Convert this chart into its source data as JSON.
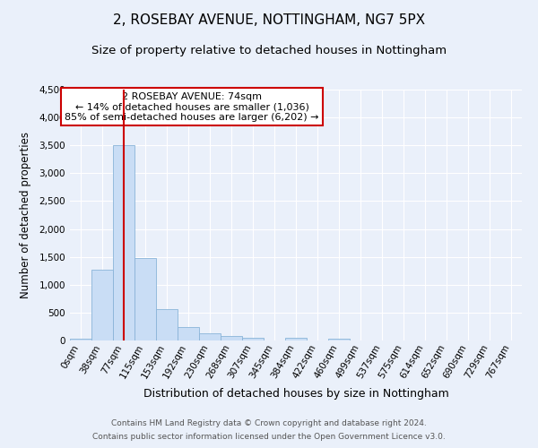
{
  "title": "2, ROSEBAY AVENUE, NOTTINGHAM, NG7 5PX",
  "subtitle": "Size of property relative to detached houses in Nottingham",
  "xlabel": "Distribution of detached houses by size in Nottingham",
  "ylabel": "Number of detached properties",
  "bar_labels": [
    "0sqm",
    "38sqm",
    "77sqm",
    "115sqm",
    "153sqm",
    "192sqm",
    "230sqm",
    "268sqm",
    "307sqm",
    "345sqm",
    "384sqm",
    "422sqm",
    "460sqm",
    "499sqm",
    "537sqm",
    "575sqm",
    "614sqm",
    "652sqm",
    "690sqm",
    "729sqm",
    "767sqm"
  ],
  "bar_values": [
    30,
    1270,
    3500,
    1480,
    570,
    240,
    130,
    75,
    50,
    0,
    45,
    0,
    35,
    0,
    0,
    0,
    0,
    0,
    0,
    0,
    0
  ],
  "bar_color": "#c9ddf5",
  "bar_edgecolor": "#8ab4d8",
  "red_line_x": 2.0,
  "ylim": [
    0,
    4500
  ],
  "yticks": [
    0,
    500,
    1000,
    1500,
    2000,
    2500,
    3000,
    3500,
    4000,
    4500
  ],
  "annotation_title": "2 ROSEBAY AVENUE: 74sqm",
  "annotation_line1": "← 14% of detached houses are smaller (1,036)",
  "annotation_line2": "85% of semi-detached houses are larger (6,202) →",
  "annotation_box_facecolor": "#ffffff",
  "annotation_box_edgecolor": "#cc0000",
  "red_line_color": "#cc0000",
  "footer_line1": "Contains HM Land Registry data © Crown copyright and database right 2024.",
  "footer_line2": "Contains public sector information licensed under the Open Government Licence v3.0.",
  "bg_color": "#eaf0fa",
  "plot_bg_color": "#eaf0fa",
  "grid_color": "#ffffff",
  "title_fontsize": 11,
  "subtitle_fontsize": 9.5,
  "ylabel_fontsize": 8.5,
  "xlabel_fontsize": 9,
  "tick_fontsize": 7.5,
  "ann_fontsize": 8,
  "footer_fontsize": 6.5
}
